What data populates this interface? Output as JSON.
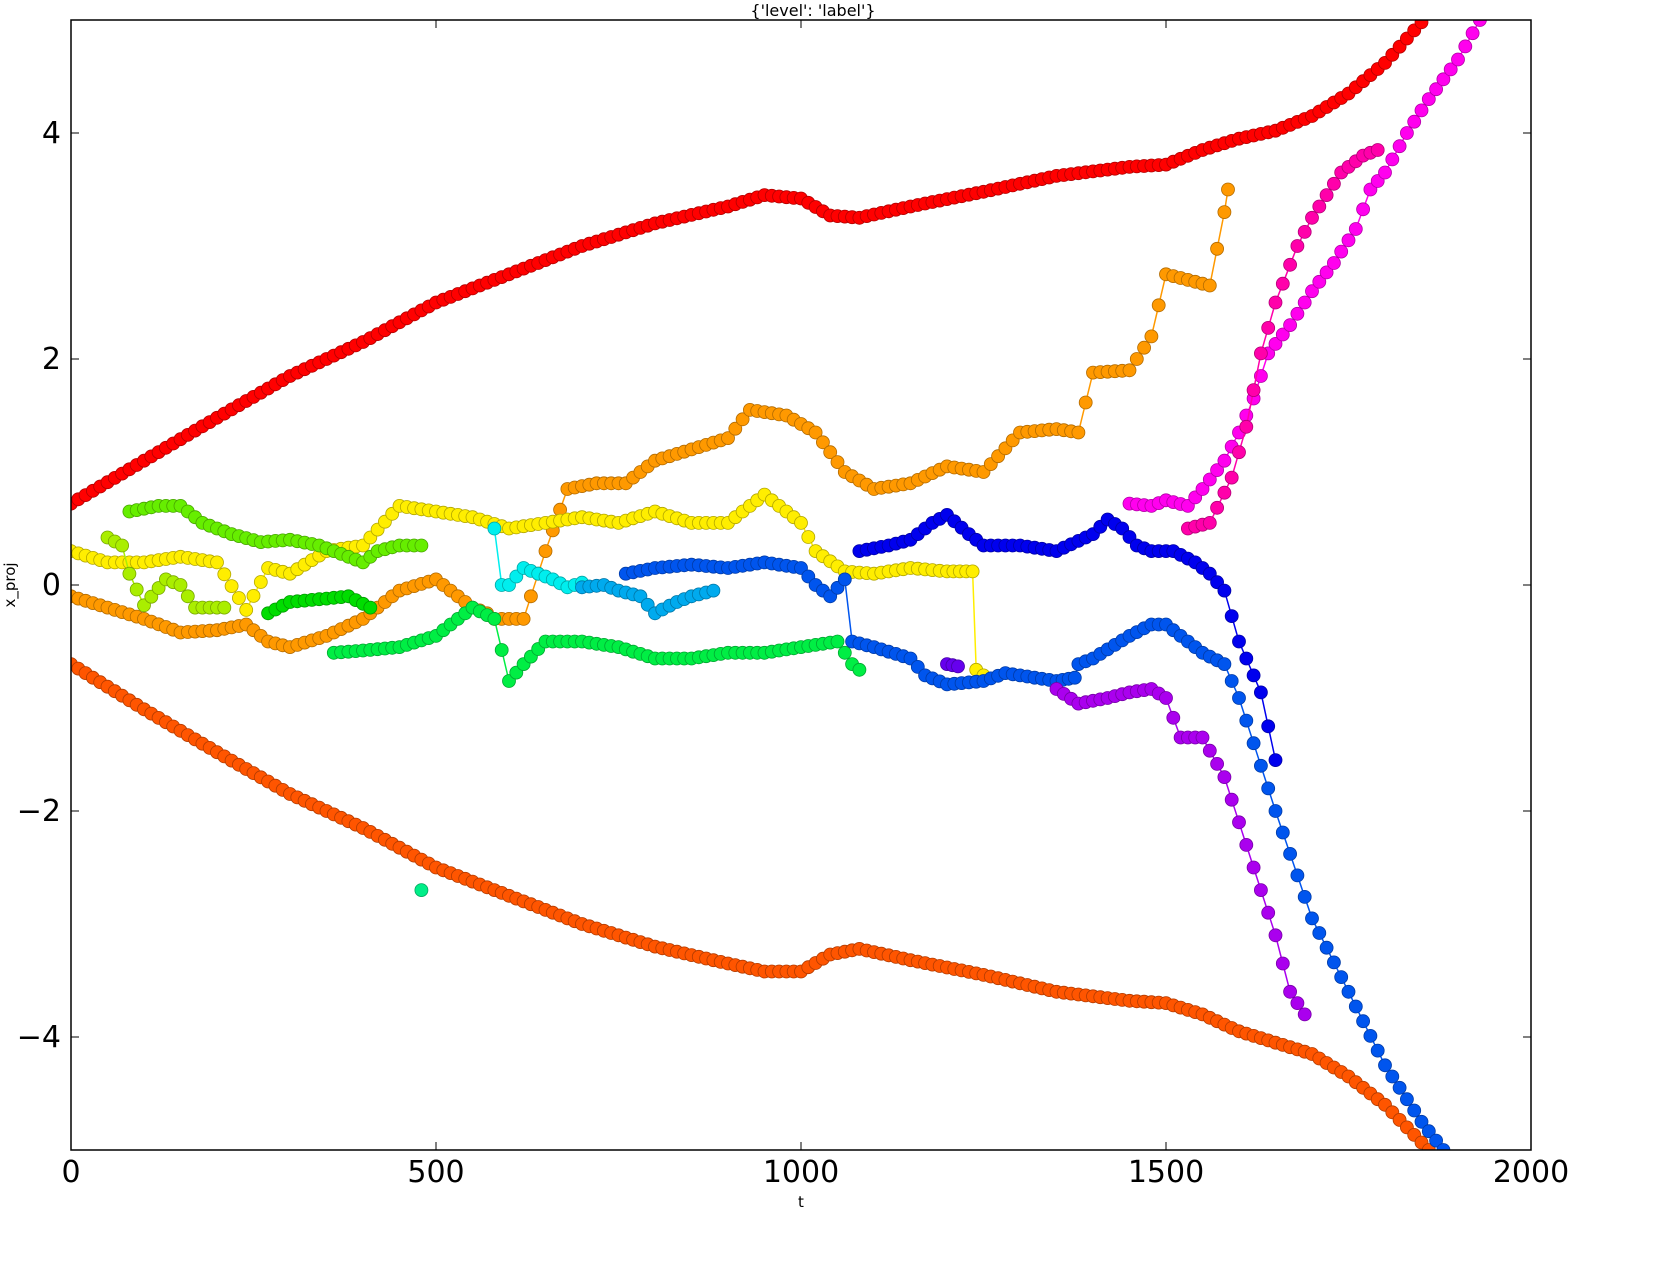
{
  "chart_data": {
    "type": "scatter",
    "title": "{'level': 'label'}",
    "xlabel": "t",
    "ylabel": "x_proj",
    "xlim": [
      0,
      2000
    ],
    "ylim": [
      -5,
      5
    ],
    "grid": false,
    "x_ticks": [
      0,
      500,
      1000,
      1500,
      2000
    ],
    "x_tick_labels": [
      "0",
      "500",
      "1000",
      "1500",
      "2000"
    ],
    "y_ticks": [
      -4,
      -2,
      0,
      2,
      4
    ],
    "y_tick_labels": [
      "−4",
      "−2",
      "0",
      "2",
      "4"
    ],
    "series": [
      {
        "color": "#ff0000",
        "points": [
          [
            0,
            0.72
          ],
          [
            100,
            1.1
          ],
          [
            200,
            1.48
          ],
          [
            300,
            1.85
          ],
          [
            400,
            2.15
          ],
          [
            500,
            2.5
          ],
          [
            600,
            2.75
          ],
          [
            700,
            3.0
          ],
          [
            800,
            3.2
          ],
          [
            900,
            3.35
          ],
          [
            950,
            3.45
          ],
          [
            1000,
            3.42
          ],
          [
            1040,
            3.27
          ],
          [
            1080,
            3.25
          ],
          [
            1150,
            3.35
          ],
          [
            1250,
            3.48
          ],
          [
            1350,
            3.62
          ],
          [
            1450,
            3.7
          ],
          [
            1500,
            3.72
          ],
          [
            1550,
            3.85
          ],
          [
            1600,
            3.95
          ],
          [
            1650,
            4.02
          ],
          [
            1700,
            4.15
          ],
          [
            1750,
            4.35
          ],
          [
            1800,
            4.62
          ],
          [
            1850,
            4.98
          ]
        ]
      },
      {
        "color": "#ff5500",
        "points": [
          [
            0,
            -0.7
          ],
          [
            100,
            -1.1
          ],
          [
            200,
            -1.48
          ],
          [
            300,
            -1.85
          ],
          [
            400,
            -2.15
          ],
          [
            500,
            -2.5
          ],
          [
            600,
            -2.75
          ],
          [
            700,
            -3.0
          ],
          [
            800,
            -3.2
          ],
          [
            900,
            -3.35
          ],
          [
            950,
            -3.42
          ],
          [
            1000,
            -3.42
          ],
          [
            1040,
            -3.27
          ],
          [
            1080,
            -3.22
          ],
          [
            1150,
            -3.32
          ],
          [
            1250,
            -3.45
          ],
          [
            1350,
            -3.6
          ],
          [
            1450,
            -3.68
          ],
          [
            1500,
            -3.7
          ],
          [
            1550,
            -3.8
          ],
          [
            1600,
            -3.95
          ],
          [
            1650,
            -4.05
          ],
          [
            1700,
            -4.15
          ],
          [
            1750,
            -4.35
          ],
          [
            1800,
            -4.6
          ],
          [
            1860,
            -5.0
          ]
        ]
      },
      {
        "color": "#ff9900",
        "points": [
          [
            0,
            -0.1
          ],
          [
            100,
            -0.3
          ],
          [
            150,
            -0.42
          ],
          [
            200,
            -0.4
          ],
          [
            240,
            -0.35
          ],
          [
            270,
            -0.5
          ],
          [
            300,
            -0.55
          ],
          [
            350,
            -0.45
          ],
          [
            400,
            -0.3
          ],
          [
            450,
            -0.05
          ],
          [
            500,
            0.05
          ],
          [
            550,
            -0.2
          ],
          [
            570,
            -0.25
          ],
          [
            580,
            -0.3
          ],
          [
            620,
            -0.3
          ],
          [
            650,
            0.3
          ],
          [
            680,
            0.85
          ],
          [
            720,
            0.9
          ],
          [
            760,
            0.9
          ],
          [
            800,
            1.1
          ],
          [
            850,
            1.2
          ],
          [
            900,
            1.3
          ],
          [
            930,
            1.55
          ],
          [
            980,
            1.5
          ],
          [
            1020,
            1.35
          ],
          [
            1060,
            1.0
          ],
          [
            1100,
            0.85
          ],
          [
            1150,
            0.9
          ],
          [
            1200,
            1.05
          ],
          [
            1250,
            1.0
          ],
          [
            1300,
            1.35
          ],
          [
            1350,
            1.38
          ],
          [
            1380,
            1.35
          ],
          [
            1400,
            1.88
          ],
          [
            1450,
            1.9
          ],
          [
            1480,
            2.2
          ],
          [
            1500,
            2.75
          ],
          [
            1530,
            2.7
          ],
          [
            1560,
            2.65
          ],
          [
            1580,
            3.3
          ],
          [
            1585,
            3.5
          ]
        ]
      },
      {
        "color": "#ffee00",
        "points": [
          [
            0,
            0.3
          ],
          [
            50,
            0.2
          ],
          [
            100,
            0.2
          ],
          [
            150,
            0.25
          ],
          [
            200,
            0.2
          ],
          [
            240,
            -0.22
          ],
          [
            270,
            0.15
          ],
          [
            300,
            0.1
          ],
          [
            350,
            0.3
          ],
          [
            400,
            0.35
          ],
          [
            450,
            0.7
          ],
          [
            500,
            0.65
          ],
          [
            550,
            0.6
          ],
          [
            600,
            0.5
          ],
          [
            650,
            0.55
          ],
          [
            700,
            0.6
          ],
          [
            750,
            0.55
          ],
          [
            800,
            0.65
          ],
          [
            850,
            0.55
          ],
          [
            900,
            0.55
          ],
          [
            950,
            0.8
          ],
          [
            1000,
            0.55
          ],
          [
            1020,
            0.3
          ],
          [
            1060,
            0.12
          ],
          [
            1100,
            0.1
          ],
          [
            1150,
            0.15
          ],
          [
            1200,
            0.12
          ],
          [
            1235,
            0.12
          ],
          [
            1240,
            -0.75
          ],
          [
            1250,
            -0.8
          ]
        ]
      },
      {
        "color": "#aaee00",
        "points": [
          [
            50,
            0.42
          ],
          [
            70,
            0.35
          ],
          [
            80,
            0.1
          ],
          [
            100,
            -0.18
          ],
          [
            130,
            0.05
          ],
          [
            150,
            0.0
          ],
          [
            170,
            -0.2
          ],
          [
            210,
            -0.2
          ]
        ]
      },
      {
        "color": "#66ee00",
        "points": [
          [
            80,
            0.65
          ],
          [
            120,
            0.7
          ],
          [
            150,
            0.7
          ],
          [
            180,
            0.55
          ],
          [
            220,
            0.45
          ],
          [
            260,
            0.38
          ],
          [
            300,
            0.4
          ],
          [
            340,
            0.35
          ],
          [
            380,
            0.25
          ],
          [
            400,
            0.2
          ],
          [
            420,
            0.3
          ],
          [
            450,
            0.35
          ],
          [
            480,
            0.35
          ]
        ]
      },
      {
        "color": "#00dd00",
        "points": [
          [
            270,
            -0.25
          ],
          [
            300,
            -0.15
          ],
          [
            350,
            -0.12
          ],
          [
            380,
            -0.1
          ],
          [
            410,
            -0.2
          ]
        ]
      },
      {
        "color": "#00ee44",
        "points": [
          [
            360,
            -0.6
          ],
          [
            400,
            -0.58
          ],
          [
            450,
            -0.55
          ],
          [
            500,
            -0.45
          ],
          [
            550,
            -0.2
          ],
          [
            580,
            -0.3
          ],
          [
            600,
            -0.85
          ],
          [
            620,
            -0.7
          ],
          [
            650,
            -0.5
          ],
          [
            700,
            -0.5
          ],
          [
            750,
            -0.55
          ],
          [
            800,
            -0.65
          ],
          [
            850,
            -0.65
          ],
          [
            900,
            -0.6
          ],
          [
            950,
            -0.6
          ],
          [
            1000,
            -0.55
          ],
          [
            1050,
            -0.5
          ],
          [
            1070,
            -0.7
          ],
          [
            1080,
            -0.75
          ]
        ]
      },
      {
        "color": "#00ee88",
        "points": [
          [
            480,
            -2.7
          ]
        ]
      },
      {
        "color": "#00eeee",
        "points": [
          [
            580,
            0.5
          ],
          [
            590,
            0.0
          ],
          [
            600,
            0.0
          ],
          [
            620,
            0.15
          ],
          [
            640,
            0.1
          ],
          [
            660,
            0.05
          ],
          [
            680,
            -0.02
          ],
          [
            700,
            0.02
          ]
        ]
      },
      {
        "color": "#00aaee",
        "points": [
          [
            700,
            -0.02
          ],
          [
            730,
            0.0
          ],
          [
            750,
            -0.05
          ],
          [
            780,
            -0.1
          ],
          [
            800,
            -0.25
          ],
          [
            830,
            -0.15
          ],
          [
            850,
            -0.1
          ],
          [
            880,
            -0.05
          ]
        ]
      },
      {
        "color": "#0055ee",
        "points": [
          [
            760,
            0.1
          ],
          [
            800,
            0.15
          ],
          [
            850,
            0.18
          ],
          [
            900,
            0.15
          ],
          [
            950,
            0.2
          ],
          [
            1000,
            0.15
          ],
          [
            1020,
            0.0
          ],
          [
            1040,
            -0.1
          ],
          [
            1060,
            0.05
          ],
          [
            1070,
            -0.5
          ],
          [
            1100,
            -0.55
          ],
          [
            1150,
            -0.65
          ],
          [
            1170,
            -0.8
          ],
          [
            1200,
            -0.88
          ],
          [
            1250,
            -0.85
          ],
          [
            1280,
            -0.78
          ],
          [
            1300,
            -0.8
          ],
          [
            1350,
            -0.85
          ],
          [
            1375,
            -0.82
          ],
          [
            1380,
            -0.7
          ],
          [
            1400,
            -0.65
          ],
          [
            1450,
            -0.45
          ],
          [
            1480,
            -0.35
          ],
          [
            1500,
            -0.35
          ],
          [
            1550,
            -0.6
          ],
          [
            1580,
            -0.7
          ],
          [
            1600,
            -1.0
          ],
          [
            1650,
            -2.0
          ],
          [
            1700,
            -2.95
          ],
          [
            1750,
            -3.6
          ],
          [
            1800,
            -4.25
          ],
          [
            1850,
            -4.75
          ],
          [
            1880,
            -5.0
          ]
        ]
      },
      {
        "color": "#0000ee",
        "points": [
          [
            1080,
            0.3
          ],
          [
            1120,
            0.35
          ],
          [
            1150,
            0.4
          ],
          [
            1180,
            0.55
          ],
          [
            1200,
            0.62
          ],
          [
            1230,
            0.45
          ],
          [
            1250,
            0.35
          ],
          [
            1300,
            0.35
          ],
          [
            1350,
            0.3
          ],
          [
            1400,
            0.45
          ],
          [
            1420,
            0.58
          ],
          [
            1440,
            0.5
          ],
          [
            1460,
            0.35
          ],
          [
            1480,
            0.3
          ],
          [
            1510,
            0.3
          ],
          [
            1540,
            0.2
          ],
          [
            1560,
            0.1
          ],
          [
            1580,
            -0.05
          ],
          [
            1600,
            -0.5
          ],
          [
            1630,
            -0.95
          ],
          [
            1650,
            -1.55
          ]
        ]
      },
      {
        "color": "#6600ee",
        "points": [
          [
            1200,
            -0.7
          ],
          [
            1215,
            -0.72
          ]
        ]
      },
      {
        "color": "#aa00ee",
        "points": [
          [
            1350,
            -0.92
          ],
          [
            1380,
            -1.05
          ],
          [
            1420,
            -1.0
          ],
          [
            1450,
            -0.95
          ],
          [
            1480,
            -0.92
          ],
          [
            1500,
            -1.0
          ],
          [
            1520,
            -1.35
          ],
          [
            1550,
            -1.35
          ],
          [
            1580,
            -1.7
          ],
          [
            1620,
            -2.5
          ],
          [
            1650,
            -3.1
          ],
          [
            1670,
            -3.6
          ],
          [
            1690,
            -3.8
          ]
        ]
      },
      {
        "color": "#ff00ee",
        "points": [
          [
            1450,
            0.72
          ],
          [
            1480,
            0.7
          ],
          [
            1500,
            0.75
          ],
          [
            1530,
            0.7
          ],
          [
            1550,
            0.85
          ],
          [
            1580,
            1.1
          ],
          [
            1600,
            1.35
          ],
          [
            1620,
            1.65
          ],
          [
            1640,
            2.05
          ],
          [
            1670,
            2.3
          ],
          [
            1700,
            2.6
          ],
          [
            1730,
            2.85
          ],
          [
            1760,
            3.15
          ],
          [
            1780,
            3.5
          ],
          [
            1800,
            3.65
          ],
          [
            1830,
            4.0
          ],
          [
            1860,
            4.3
          ],
          [
            1900,
            4.65
          ],
          [
            1930,
            5.0
          ]
        ]
      },
      {
        "color": "#ff00aa",
        "points": [
          [
            1530,
            0.5
          ],
          [
            1560,
            0.55
          ],
          [
            1590,
            0.95
          ],
          [
            1610,
            1.4
          ],
          [
            1630,
            2.05
          ],
          [
            1650,
            2.5
          ],
          [
            1680,
            3.0
          ],
          [
            1700,
            3.25
          ],
          [
            1720,
            3.45
          ],
          [
            1740,
            3.65
          ],
          [
            1770,
            3.8
          ],
          [
            1790,
            3.85
          ]
        ]
      }
    ]
  }
}
